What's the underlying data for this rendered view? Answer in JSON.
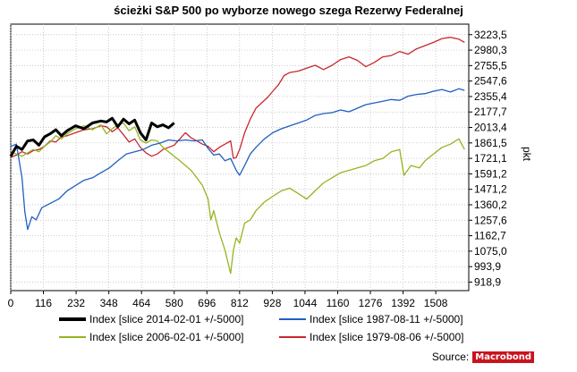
{
  "chart_data": {
    "type": "line",
    "title": "ścieżki S&P 500 po wyborze nowego szega Rezerwy Federalnej",
    "ylabel": "pkt",
    "y_scale": "log",
    "x_ticks": [
      "0",
      "116",
      "232",
      "348",
      "464",
      "580",
      "696",
      "812",
      "928",
      "1044",
      "1160",
      "1276",
      "1392",
      "1508"
    ],
    "y_ticks": [
      "918,9",
      "993,9",
      "1075,0",
      "1162,7",
      "1257,6",
      "1360,2",
      "1471,2",
      "1591,2",
      "1721,1",
      "1861,5",
      "2013,4",
      "2177,7",
      "2355,4",
      "2547,6",
      "2755,5",
      "2980,3",
      "3223,5"
    ],
    "xlim": [
      0,
      1625
    ],
    "ylim": [
      880,
      3400
    ],
    "grid": true,
    "legend_position": "bottom",
    "series": [
      {
        "name": "Index [slice 2014-02-01 +/-5000]",
        "color": "#000000",
        "width": 3,
        "points": [
          [
            0,
            1740
          ],
          [
            20,
            1830
          ],
          [
            40,
            1800
          ],
          [
            60,
            1880
          ],
          [
            80,
            1890
          ],
          [
            100,
            1840
          ],
          [
            120,
            1920
          ],
          [
            140,
            1950
          ],
          [
            160,
            1990
          ],
          [
            180,
            1930
          ],
          [
            200,
            1980
          ],
          [
            230,
            2030
          ],
          [
            260,
            2000
          ],
          [
            290,
            2060
          ],
          [
            320,
            2080
          ],
          [
            340,
            2070
          ],
          [
            360,
            2110
          ],
          [
            380,
            2020
          ],
          [
            400,
            2100
          ],
          [
            420,
            2050
          ],
          [
            440,
            2090
          ],
          [
            460,
            1960
          ],
          [
            480,
            1890
          ],
          [
            500,
            2060
          ],
          [
            520,
            2020
          ],
          [
            540,
            2040
          ],
          [
            560,
            2010
          ],
          [
            580,
            2060
          ]
        ]
      },
      {
        "name": "Index [slice 1987-08-11 +/-5000]",
        "color": "#1f5fc2",
        "width": 1.3,
        "points": [
          [
            0,
            1830
          ],
          [
            20,
            1850
          ],
          [
            40,
            1560
          ],
          [
            50,
            1310
          ],
          [
            60,
            1200
          ],
          [
            75,
            1280
          ],
          [
            90,
            1260
          ],
          [
            110,
            1340
          ],
          [
            140,
            1370
          ],
          [
            170,
            1400
          ],
          [
            200,
            1460
          ],
          [
            230,
            1500
          ],
          [
            260,
            1540
          ],
          [
            290,
            1560
          ],
          [
            320,
            1600
          ],
          [
            350,
            1640
          ],
          [
            380,
            1700
          ],
          [
            410,
            1760
          ],
          [
            440,
            1780
          ],
          [
            470,
            1800
          ],
          [
            500,
            1840
          ],
          [
            530,
            1860
          ],
          [
            560,
            1890
          ],
          [
            590,
            1880
          ],
          [
            620,
            1890
          ],
          [
            650,
            1880
          ],
          [
            680,
            1890
          ],
          [
            700,
            1810
          ],
          [
            720,
            1750
          ],
          [
            740,
            1760
          ],
          [
            760,
            1700
          ],
          [
            780,
            1720
          ],
          [
            800,
            1620
          ],
          [
            812,
            1580
          ],
          [
            830,
            1660
          ],
          [
            850,
            1760
          ],
          [
            870,
            1820
          ],
          [
            900,
            1900
          ],
          [
            930,
            1960
          ],
          [
            960,
            2000
          ],
          [
            990,
            2030
          ],
          [
            1020,
            2060
          ],
          [
            1050,
            2090
          ],
          [
            1080,
            2140
          ],
          [
            1110,
            2160
          ],
          [
            1140,
            2170
          ],
          [
            1170,
            2200
          ],
          [
            1200,
            2180
          ],
          [
            1230,
            2220
          ],
          [
            1260,
            2260
          ],
          [
            1290,
            2280
          ],
          [
            1320,
            2300
          ],
          [
            1350,
            2320
          ],
          [
            1380,
            2310
          ],
          [
            1410,
            2360
          ],
          [
            1440,
            2380
          ],
          [
            1470,
            2390
          ],
          [
            1500,
            2420
          ],
          [
            1530,
            2440
          ],
          [
            1560,
            2410
          ],
          [
            1590,
            2450
          ],
          [
            1610,
            2430
          ]
        ]
      },
      {
        "name": "Index [slice 2006-02-01 +/-5000]",
        "color": "#94b51e",
        "width": 1.3,
        "points": [
          [
            0,
            1780
          ],
          [
            20,
            1760
          ],
          [
            40,
            1740
          ],
          [
            60,
            1770
          ],
          [
            80,
            1800
          ],
          [
            100,
            1780
          ],
          [
            120,
            1830
          ],
          [
            140,
            1870
          ],
          [
            160,
            1930
          ],
          [
            180,
            1900
          ],
          [
            200,
            1950
          ],
          [
            230,
            2000
          ],
          [
            260,
            2030
          ],
          [
            290,
            1990
          ],
          [
            320,
            2040
          ],
          [
            340,
            1950
          ],
          [
            360,
            2000
          ],
          [
            380,
            2040
          ],
          [
            400,
            2060
          ],
          [
            420,
            1980
          ],
          [
            440,
            2020
          ],
          [
            460,
            1890
          ],
          [
            480,
            1860
          ],
          [
            500,
            1890
          ],
          [
            520,
            1880
          ],
          [
            540,
            1820
          ],
          [
            560,
            1780
          ],
          [
            580,
            1740
          ],
          [
            600,
            1700
          ],
          [
            620,
            1660
          ],
          [
            640,
            1620
          ],
          [
            660,
            1560
          ],
          [
            680,
            1500
          ],
          [
            700,
            1400
          ],
          [
            710,
            1260
          ],
          [
            720,
            1320
          ],
          [
            740,
            1180
          ],
          [
            760,
            1080
          ],
          [
            770,
            1020
          ],
          [
            780,
            960
          ],
          [
            790,
            1080
          ],
          [
            800,
            1150
          ],
          [
            812,
            1120
          ],
          [
            830,
            1240
          ],
          [
            850,
            1260
          ],
          [
            870,
            1320
          ],
          [
            900,
            1380
          ],
          [
            930,
            1420
          ],
          [
            960,
            1460
          ],
          [
            990,
            1480
          ],
          [
            1020,
            1440
          ],
          [
            1050,
            1400
          ],
          [
            1080,
            1460
          ],
          [
            1110,
            1520
          ],
          [
            1140,
            1560
          ],
          [
            1170,
            1600
          ],
          [
            1200,
            1620
          ],
          [
            1230,
            1640
          ],
          [
            1260,
            1660
          ],
          [
            1290,
            1700
          ],
          [
            1320,
            1720
          ],
          [
            1350,
            1780
          ],
          [
            1380,
            1800
          ],
          [
            1395,
            1580
          ],
          [
            1420,
            1660
          ],
          [
            1450,
            1640
          ],
          [
            1470,
            1700
          ],
          [
            1500,
            1760
          ],
          [
            1530,
            1820
          ],
          [
            1560,
            1850
          ],
          [
            1590,
            1900
          ],
          [
            1610,
            1800
          ]
        ]
      },
      {
        "name": "Index [slice 1979-08-06 +/-5000]",
        "color": "#c8282e",
        "width": 1.3,
        "points": [
          [
            0,
            1730
          ],
          [
            20,
            1750
          ],
          [
            40,
            1780
          ],
          [
            60,
            1760
          ],
          [
            80,
            1790
          ],
          [
            100,
            1800
          ],
          [
            120,
            1830
          ],
          [
            140,
            1880
          ],
          [
            160,
            1870
          ],
          [
            180,
            1920
          ],
          [
            200,
            1930
          ],
          [
            230,
            1960
          ],
          [
            260,
            1990
          ],
          [
            290,
            2000
          ],
          [
            320,
            2030
          ],
          [
            340,
            2020
          ],
          [
            360,
            1970
          ],
          [
            380,
            2010
          ],
          [
            400,
            1940
          ],
          [
            420,
            1870
          ],
          [
            440,
            1900
          ],
          [
            460,
            1820
          ],
          [
            480,
            1770
          ],
          [
            500,
            1740
          ],
          [
            520,
            1760
          ],
          [
            540,
            1800
          ],
          [
            560,
            1820
          ],
          [
            580,
            1840
          ],
          [
            600,
            1900
          ],
          [
            620,
            1960
          ],
          [
            640,
            1910
          ],
          [
            660,
            1880
          ],
          [
            680,
            1850
          ],
          [
            700,
            1830
          ],
          [
            720,
            1780
          ],
          [
            740,
            1820
          ],
          [
            760,
            1850
          ],
          [
            780,
            1880
          ],
          [
            790,
            1720
          ],
          [
            800,
            1730
          ],
          [
            812,
            1800
          ],
          [
            830,
            1960
          ],
          [
            850,
            2100
          ],
          [
            870,
            2220
          ],
          [
            890,
            2280
          ],
          [
            910,
            2340
          ],
          [
            930,
            2420
          ],
          [
            950,
            2500
          ],
          [
            970,
            2620
          ],
          [
            990,
            2660
          ],
          [
            1020,
            2680
          ],
          [
            1050,
            2720
          ],
          [
            1080,
            2760
          ],
          [
            1110,
            2700
          ],
          [
            1140,
            2760
          ],
          [
            1170,
            2840
          ],
          [
            1200,
            2880
          ],
          [
            1230,
            2830
          ],
          [
            1260,
            2740
          ],
          [
            1290,
            2800
          ],
          [
            1320,
            2880
          ],
          [
            1350,
            2900
          ],
          [
            1380,
            2960
          ],
          [
            1410,
            2920
          ],
          [
            1440,
            3000
          ],
          [
            1470,
            3050
          ],
          [
            1500,
            3100
          ],
          [
            1530,
            3160
          ],
          [
            1560,
            3180
          ],
          [
            1590,
            3150
          ],
          [
            1610,
            3100
          ]
        ]
      }
    ]
  },
  "source_label": "Source:",
  "source_logo": "Macrobond"
}
